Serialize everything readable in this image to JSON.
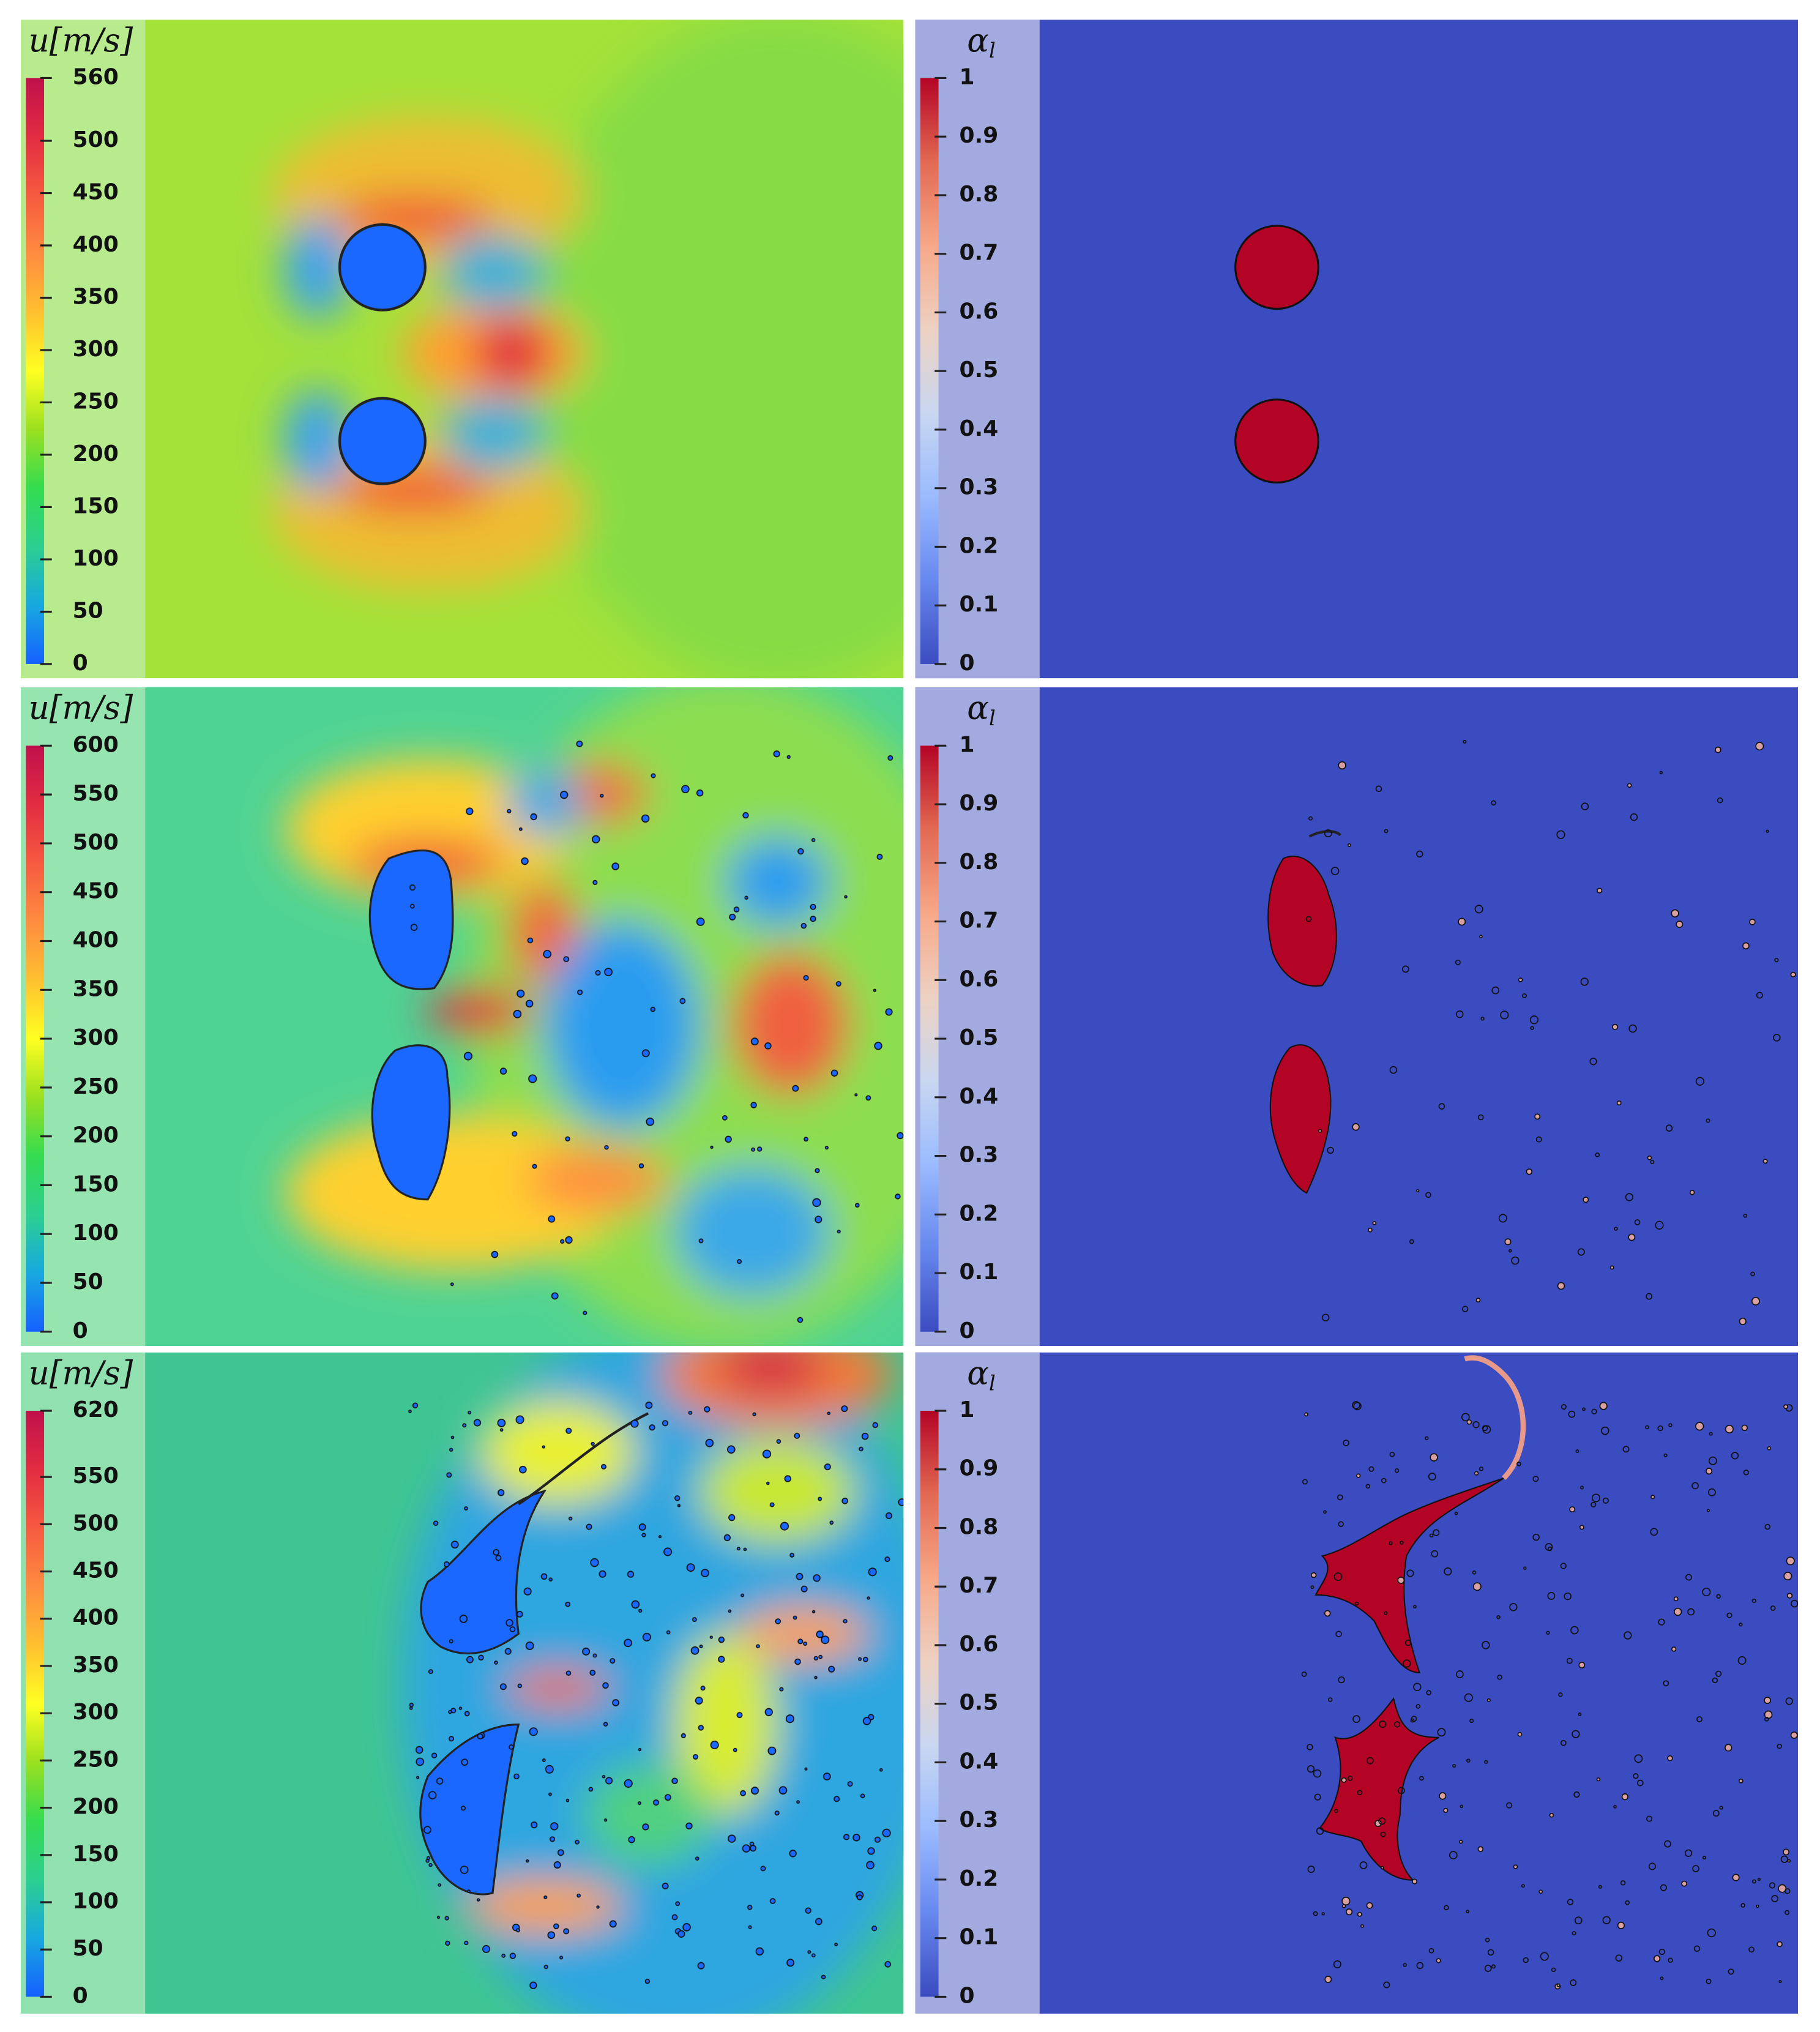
{
  "panels": [
    {
      "colorbar": {
        "title": "u[m/s]",
        "clim": [
          0,
          560
        ],
        "ticks": [
          0,
          50,
          100,
          150,
          200,
          250,
          300,
          350,
          400,
          450,
          500,
          560
        ],
        "colormap": [
          "#1560ff",
          "#18a8e0",
          "#2ccf90",
          "#34dc50",
          "#9be020",
          "#ffff22",
          "#ffc030",
          "#ff8c40",
          "#f65a40",
          "#e22c42",
          "#c0104c"
        ]
      }
    },
    {
      "colorbar": {
        "title": {
          "symbol": "α",
          "subscript": "l"
        },
        "clim": [
          0,
          1
        ],
        "ticks": [
          0,
          0.1,
          0.2,
          0.3,
          0.4,
          0.5,
          0.6,
          0.7,
          0.8,
          0.9,
          1
        ],
        "colormap": [
          "#3b4cc0",
          "#6788ee",
          "#9abbff",
          "#c9d7f0",
          "#edd1c2",
          "#f7a889",
          "#e26952",
          "#b40426"
        ]
      }
    },
    {
      "colorbar": {
        "title": "u[m/s]",
        "clim": [
          0,
          600
        ],
        "ticks": [
          0,
          50,
          100,
          150,
          200,
          250,
          300,
          350,
          400,
          450,
          500,
          550,
          600
        ],
        "colormap": [
          "#1560ff",
          "#18a8e0",
          "#2ccf90",
          "#34dc50",
          "#9be020",
          "#ffff22",
          "#ffc030",
          "#ff8c40",
          "#f65a40",
          "#e22c42",
          "#c0104c"
        ]
      }
    },
    {
      "colorbar": {
        "title": {
          "symbol": "α",
          "subscript": "l"
        },
        "clim": [
          0,
          1
        ],
        "ticks": [
          0,
          0.1,
          0.2,
          0.3,
          0.4,
          0.5,
          0.6,
          0.7,
          0.8,
          0.9,
          1
        ],
        "colormap": [
          "#3b4cc0",
          "#6788ee",
          "#9abbff",
          "#c9d7f0",
          "#edd1c2",
          "#f7a889",
          "#e26952",
          "#b40426"
        ]
      }
    },
    {
      "colorbar": {
        "title": "u[m/s]",
        "clim": [
          0,
          620
        ],
        "ticks": [
          0,
          50,
          100,
          150,
          200,
          250,
          300,
          350,
          400,
          450,
          500,
          550,
          620
        ],
        "colormap": [
          "#1560ff",
          "#18a8e0",
          "#2ccf90",
          "#34dc50",
          "#9be020",
          "#ffff22",
          "#ffc030",
          "#ff8c40",
          "#f65a40",
          "#e22c42",
          "#c0104c"
        ]
      }
    },
    {
      "colorbar": {
        "title": {
          "symbol": "α",
          "subscript": "l"
        },
        "clim": [
          0,
          1
        ],
        "ticks": [
          0,
          0.1,
          0.2,
          0.3,
          0.4,
          0.5,
          0.6,
          0.7,
          0.8,
          0.9,
          1
        ],
        "colormap": [
          "#3b4cc0",
          "#6788ee",
          "#9abbff",
          "#c9d7f0",
          "#edd1c2",
          "#f7a889",
          "#e26952",
          "#b40426"
        ]
      }
    }
  ]
}
